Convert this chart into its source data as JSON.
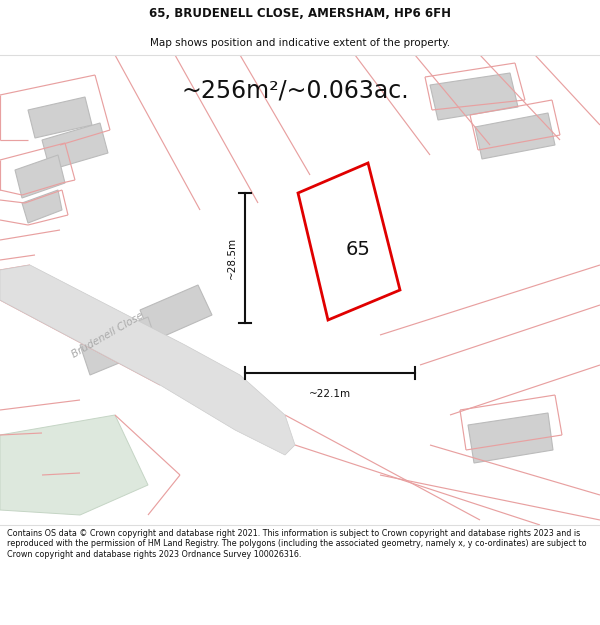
{
  "title_line1": "65, BRUDENELL CLOSE, AMERSHAM, HP6 6FH",
  "title_line2": "Map shows position and indicative extent of the property.",
  "area_text": "~256m²/~0.063ac.",
  "label_65": "65",
  "label_height": "~28.5m",
  "label_width": "~22.1m",
  "street_name": "Brudenell Close",
  "footer_text": "Contains OS data © Crown copyright and database right 2021. This information is subject to Crown copyright and database rights 2023 and is reproduced with the permission of HM Land Registry. The polygons (including the associated geometry, namely x, y co-ordinates) are subject to Crown copyright and database rights 2023 Ordnance Survey 100026316.",
  "bg_color": "#f2f2f2",
  "plot_color": "#e00000",
  "building_fill": "#d0d0d0",
  "building_edge": "#bbbbbb",
  "green_fill": "#dde8dd",
  "pink_color": "#e8a0a0",
  "road_fill": "#e0e0e0",
  "road_edge": "#cccccc",
  "white": "#ffffff",
  "black": "#111111",
  "gray_text": "#aaaaaa"
}
